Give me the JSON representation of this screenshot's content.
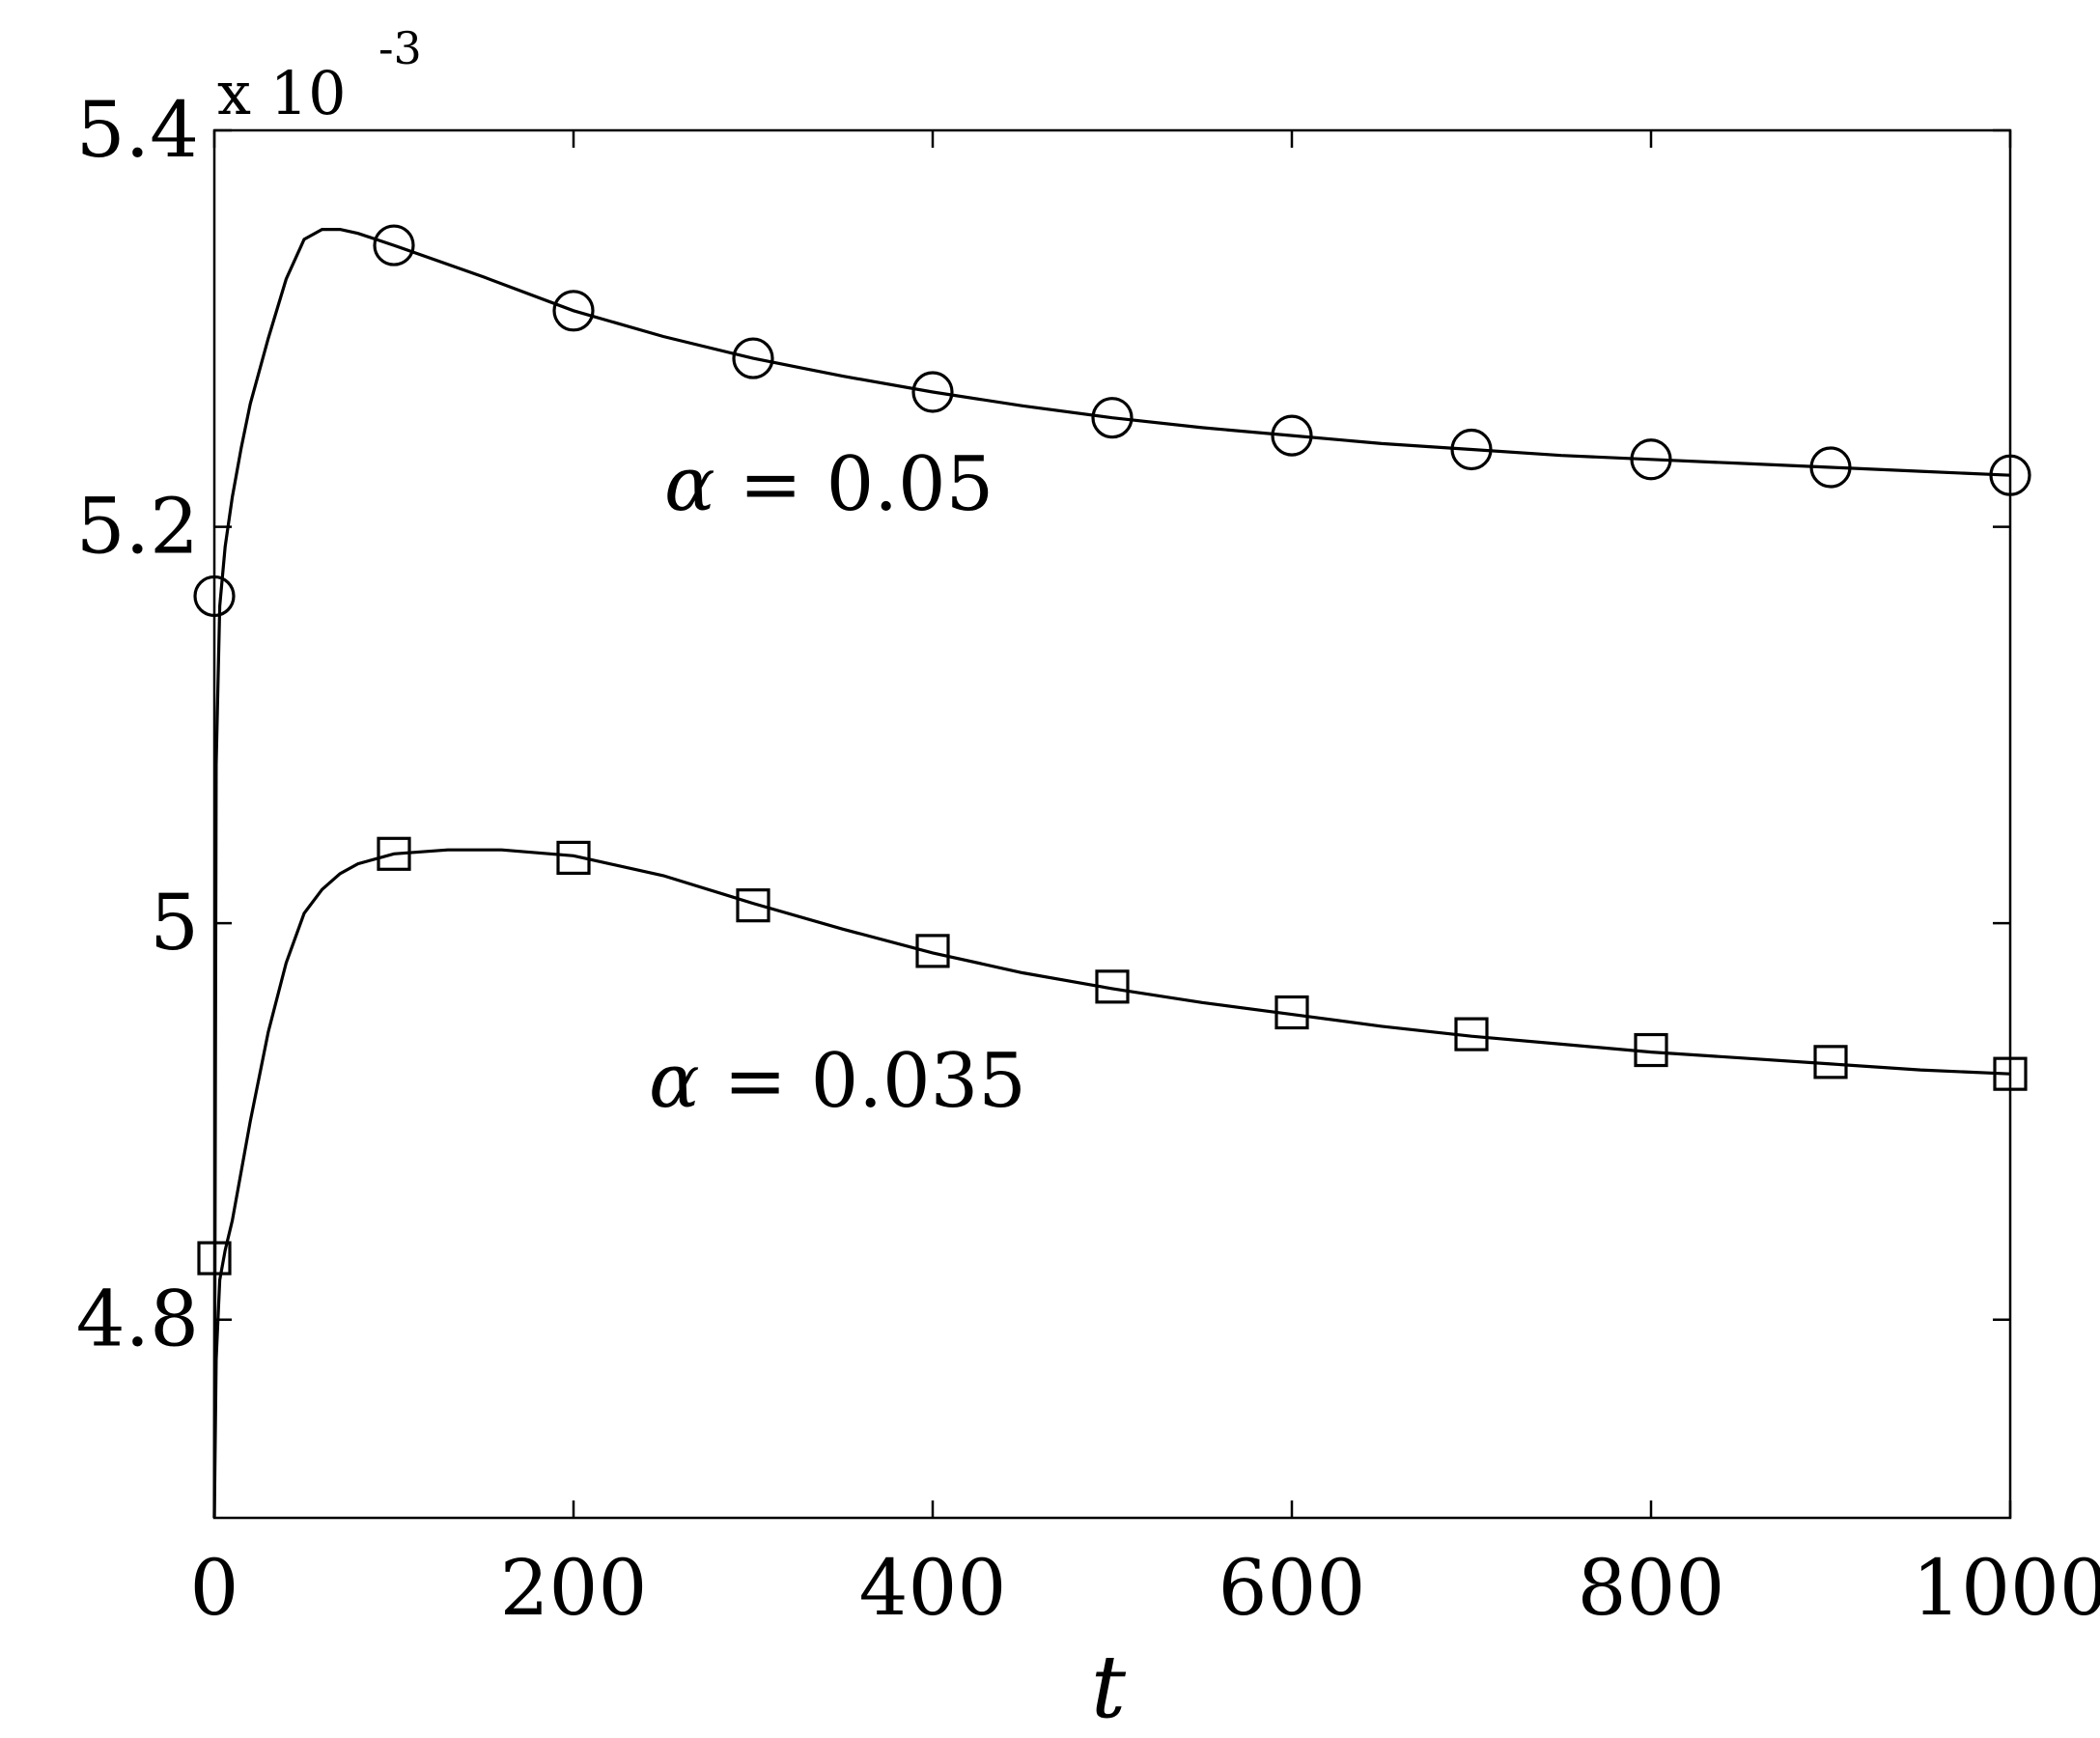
{
  "chart_data": {
    "type": "line",
    "title": "",
    "xlabel": "t",
    "ylabel": "",
    "y_multiplier_label": {
      "base": "x 10",
      "exponent": "-3"
    },
    "xlim": [
      0,
      1000
    ],
    "ylim": [
      4.7,
      5.4
    ],
    "x_ticks": [
      0,
      200,
      400,
      600,
      800,
      1000
    ],
    "x_tick_labels": [
      "0",
      "200",
      "400",
      "600",
      "800",
      "1000"
    ],
    "y_ticks": [
      4.8,
      5.0,
      5.2,
      5.4
    ],
    "y_tick_labels": [
      "4.8",
      "5",
      "5.2",
      "5.4"
    ],
    "grid": false,
    "series": [
      {
        "annotation": {
          "symbol": "α",
          "text": " = 0.05"
        },
        "marker": "circle",
        "line": {
          "x": [
            0,
            1,
            3,
            6,
            10,
            15,
            20,
            30,
            40,
            50,
            60,
            70,
            80,
            100,
            150,
            200,
            250,
            300,
            350,
            400,
            450,
            500,
            550,
            600,
            650,
            700,
            750,
            800,
            850,
            900,
            950,
            1000
          ],
          "y": [
            4.7,
            5.08,
            5.16,
            5.19,
            5.215,
            5.24,
            5.262,
            5.295,
            5.325,
            5.345,
            5.35,
            5.35,
            5.348,
            5.342,
            5.326,
            5.309,
            5.296,
            5.285,
            5.276,
            5.268,
            5.261,
            5.255,
            5.25,
            5.246,
            5.242,
            5.239,
            5.236,
            5.234,
            5.232,
            5.23,
            5.228,
            5.226
          ]
        },
        "markers": {
          "x": [
            0,
            100,
            200,
            300,
            400,
            500,
            600,
            700,
            800,
            900,
            1000
          ],
          "y": [
            5.165,
            5.342,
            5.309,
            5.285,
            5.268,
            5.255,
            5.246,
            5.239,
            5.234,
            5.23,
            5.226
          ]
        }
      },
      {
        "annotation": {
          "symbol": "α",
          "text": " = 0.035"
        },
        "marker": "square",
        "line": {
          "x": [
            0,
            1,
            3,
            6,
            10,
            15,
            20,
            30,
            40,
            50,
            60,
            70,
            80,
            100,
            130,
            160,
            200,
            250,
            300,
            350,
            400,
            450,
            500,
            550,
            600,
            650,
            700,
            750,
            800,
            850,
            900,
            950,
            1000
          ],
          "y": [
            4.7,
            4.78,
            4.82,
            4.835,
            4.85,
            4.875,
            4.9,
            4.945,
            4.98,
            5.005,
            5.017,
            5.025,
            5.03,
            5.035,
            5.037,
            5.037,
            5.034,
            5.024,
            5.01,
            4.997,
            4.985,
            4.975,
            4.967,
            4.96,
            4.954,
            4.948,
            4.943,
            4.939,
            4.935,
            4.932,
            4.929,
            4.926,
            4.924
          ]
        },
        "markers": {
          "x": [
            0,
            100,
            200,
            300,
            400,
            500,
            600,
            700,
            800,
            900,
            1000
          ],
          "y": [
            4.831,
            5.035,
            5.033,
            5.009,
            4.986,
            4.968,
            4.955,
            4.944,
            4.936,
            4.93,
            4.924
          ]
        }
      }
    ]
  }
}
